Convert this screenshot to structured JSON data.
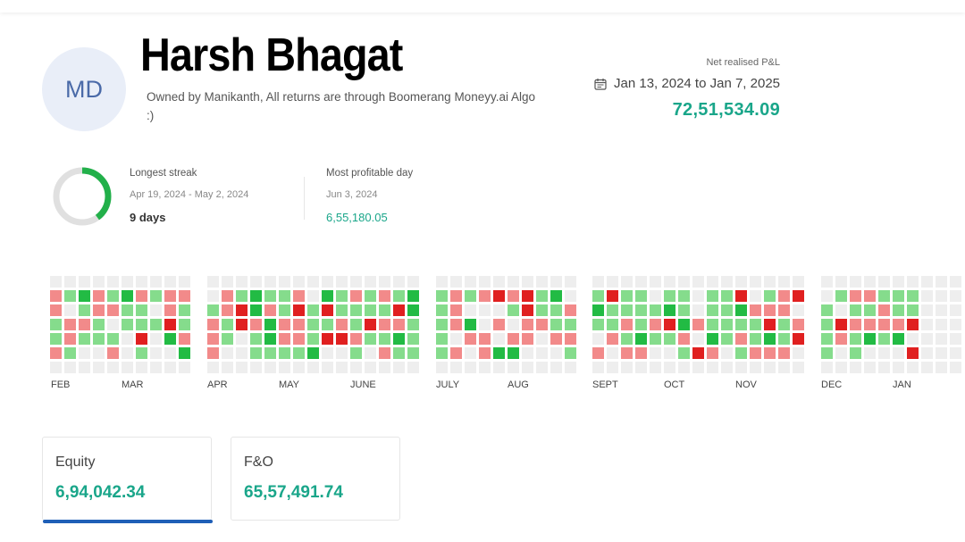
{
  "profile": {
    "initials": "MD",
    "name": "Harsh Bhagat",
    "bio": "Owned by Manikanth, All returns are through Boomerang Moneyy.ai Algo :)"
  },
  "pnl": {
    "label": "Net realised P&L",
    "date_range": "Jan 13, 2024 to Jan 7, 2025",
    "value": "72,51,534.09",
    "icon": "calendar-icon"
  },
  "stats": {
    "streak_label": "Longest streak",
    "streak_range": "Apr 19, 2024 - May 2, 2024",
    "streak_value": "9 days",
    "streak_progress": 0.4,
    "profit_label": "Most profitable day",
    "profit_date": "Jun 3, 2024",
    "profit_value": "6,55,180.05"
  },
  "heatmap": {
    "months": [
      "FEB",
      "MAR",
      "APR",
      "MAY",
      "JUNE",
      "JULY",
      "AUG",
      "SEPT",
      "OCT",
      "NOV",
      "DEC",
      "JAN"
    ],
    "colors": {
      "empty": "#eeeeee",
      "light_green": "#85dc8c",
      "dark_green": "#22bb44",
      "light_red": "#f28a8a",
      "dark_red": "#e02020"
    }
  },
  "segments": [
    {
      "title": "Equity",
      "value": "6,94,042.34",
      "active": true
    },
    {
      "title": "F&O",
      "value": "65,57,491.74",
      "active": false
    }
  ]
}
